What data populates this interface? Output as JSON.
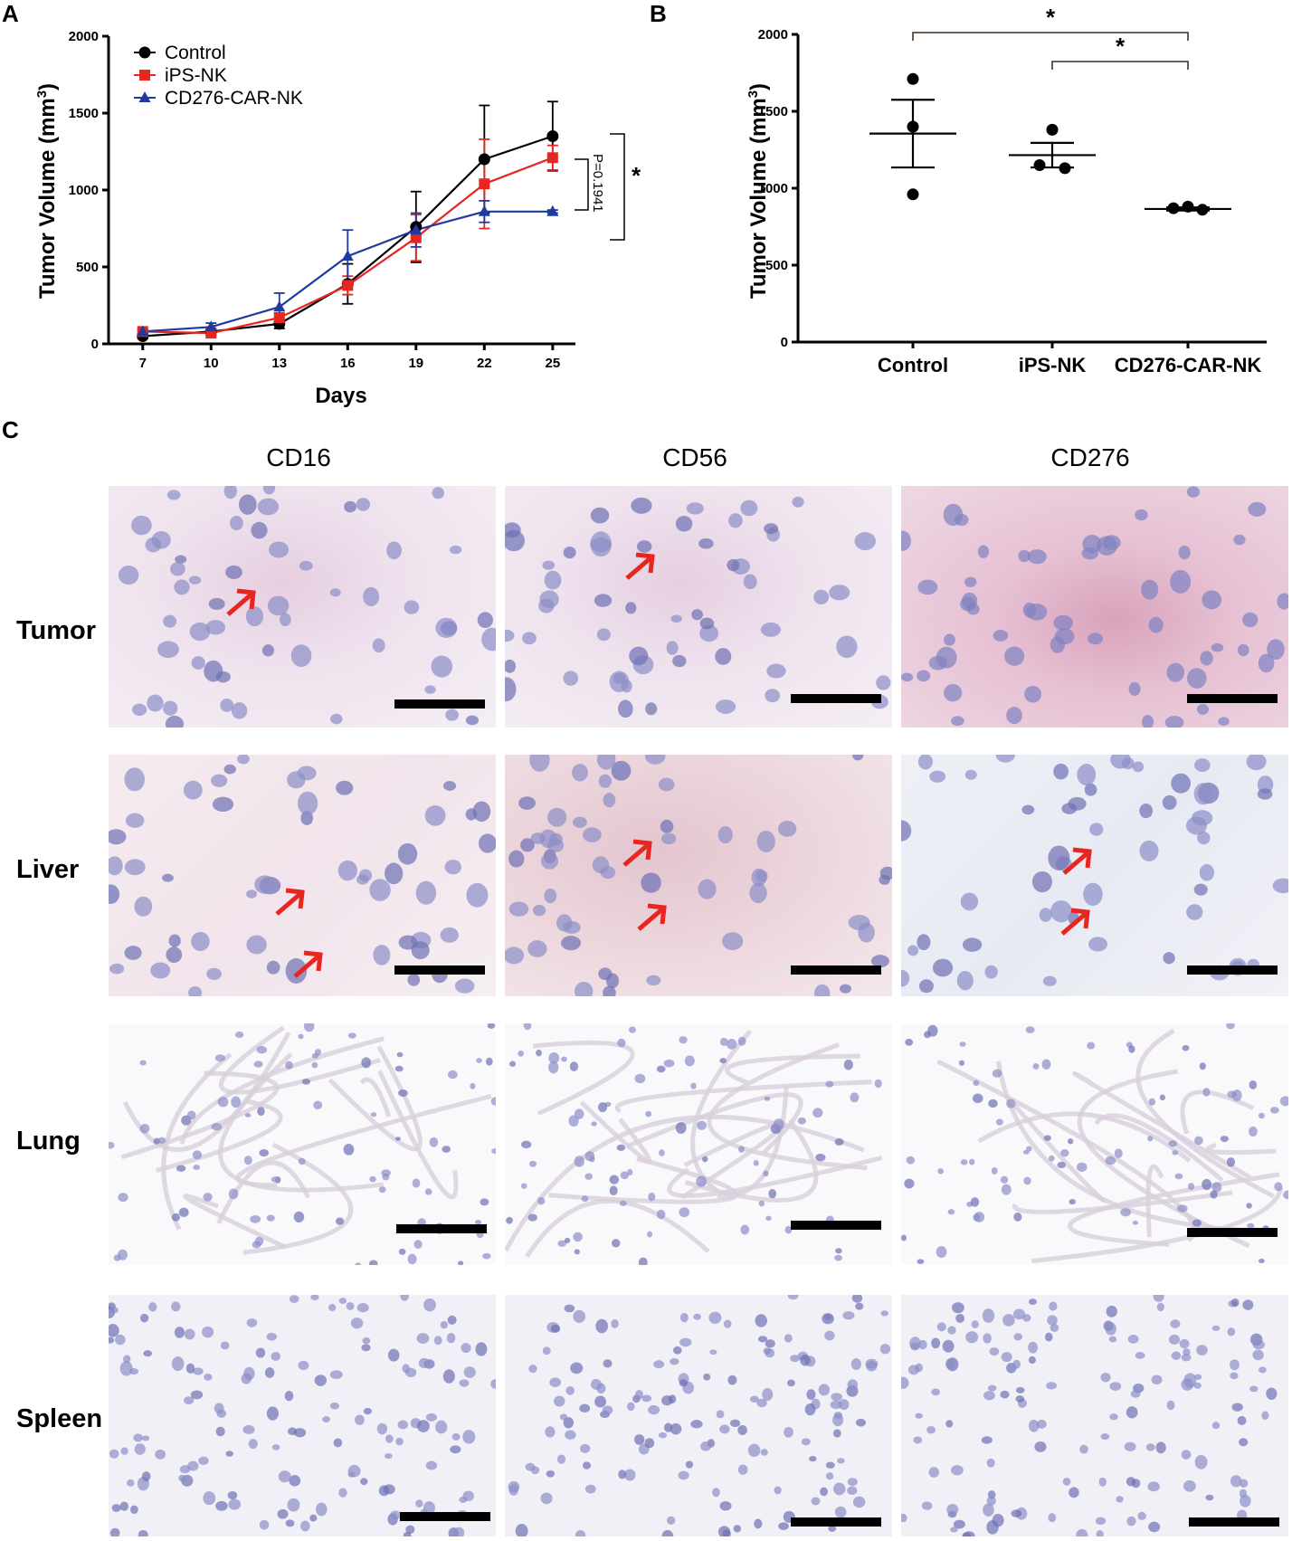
{
  "panels": {
    "a": "A",
    "b": "B",
    "c": "C"
  },
  "chart_data": [
    {
      "type": "line",
      "panel": "A",
      "xlabel": "Days",
      "ylabel": "Tumor Volume (mm",
      "ylabel_sup": "3",
      "ylabel_close": ")",
      "x": [
        7,
        10,
        13,
        16,
        19,
        22,
        25
      ],
      "xticks": [
        "7",
        "10",
        "13",
        "16",
        "19",
        "22",
        "25"
      ],
      "yticks": [
        "0",
        "500",
        "1000",
        "1500",
        "2000"
      ],
      "ylim": [
        0,
        2000
      ],
      "legend_position": "top-left",
      "series": [
        {
          "name": "Control",
          "color": "#000000",
          "marker": "circle",
          "values": [
            50,
            80,
            130,
            390,
            760,
            1200,
            1350
          ],
          "errors": [
            15,
            20,
            30,
            130,
            230,
            350,
            225
          ]
        },
        {
          "name": "iPS-NK",
          "color": "#e8261f",
          "marker": "square",
          "values": [
            80,
            70,
            170,
            380,
            690,
            1040,
            1210
          ],
          "errors": [
            10,
            15,
            30,
            60,
            150,
            290,
            80
          ]
        },
        {
          "name": "CD276-CAR-NK",
          "color": "#1f3aa0",
          "marker": "triangle",
          "values": [
            80,
            110,
            240,
            570,
            740,
            860,
            860
          ],
          "errors": [
            15,
            25,
            90,
            170,
            110,
            70,
            10
          ]
        }
      ],
      "annotations": {
        "p_label": "P=0.1941",
        "star": "*"
      }
    },
    {
      "type": "scatter",
      "panel": "B",
      "ylabel": "Tumor Volume (mm",
      "ylabel_sup": "3",
      "ylabel_close": ")",
      "categories": [
        "Control",
        "iPS-NK",
        "CD276-CAR-NK"
      ],
      "yticks": [
        "0",
        "500",
        "1000",
        "1500",
        "2000"
      ],
      "ylim": [
        0,
        2000
      ],
      "points": [
        [
          1710,
          1400,
          960
        ],
        [
          1380,
          1150,
          1130
        ],
        [
          870,
          880,
          860
        ]
      ],
      "means": [
        1355,
        1215,
        865
      ],
      "sem": [
        220,
        80,
        10
      ],
      "significance": [
        {
          "from": 0,
          "to": 2,
          "label": "*"
        },
        {
          "from": 1,
          "to": 2,
          "label": "*"
        }
      ]
    }
  ],
  "micrographs": {
    "columns": [
      "CD16",
      "CD56",
      "CD276"
    ],
    "rows": [
      "Tumor",
      "Liver",
      "Lung",
      "Spleen"
    ]
  }
}
